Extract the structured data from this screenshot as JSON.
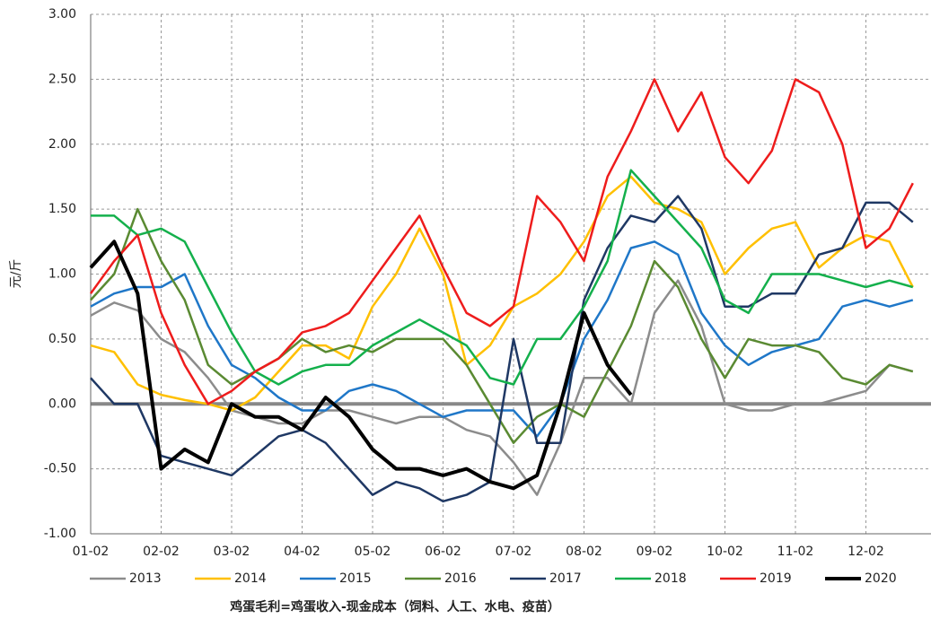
{
  "chart_data": {
    "type": "line",
    "y_label": "元/斤",
    "footnote": "鸡蛋毛利=鸡蛋收入-现金成本（饲料、人工、水电、疫苗）",
    "categories": [
      "01-02",
      null,
      null,
      "02-02",
      null,
      null,
      "03-02",
      null,
      null,
      "04-02",
      null,
      null,
      "05-02",
      null,
      null,
      "06-02",
      null,
      null,
      "07-02",
      null,
      null,
      "08-02",
      null,
      null,
      "09-02",
      null,
      null,
      "10-02",
      null,
      null,
      "11-02",
      null,
      null,
      "12-02",
      null,
      null
    ],
    "ylim": [
      -1,
      3
    ],
    "yticks": [
      {
        "value": -1,
        "label": "-1.00"
      },
      {
        "value": -0.5,
        "label": "-0.50"
      },
      {
        "value": 0,
        "label": "0.00"
      },
      {
        "value": 0.5,
        "label": "0.50"
      },
      {
        "value": 1,
        "label": "1.00"
      },
      {
        "value": 1.5,
        "label": "1.50"
      },
      {
        "value": 2,
        "label": "2.00"
      },
      {
        "value": 2.5,
        "label": "2.50"
      },
      {
        "value": 3,
        "label": "3.00"
      }
    ],
    "grid": true,
    "series": [
      {
        "name": "2013",
        "color": "#8c8c8c",
        "width": 2.5,
        "values": [
          0.68,
          0.78,
          0.72,
          0.5,
          0.4,
          0.2,
          -0.05,
          -0.1,
          -0.15,
          -0.15,
          -0.05,
          -0.05,
          -0.1,
          -0.15,
          -0.1,
          -0.1,
          -0.2,
          -0.25,
          -0.45,
          -0.7,
          -0.3,
          0.2,
          0.2,
          0,
          0.7,
          0.95,
          0.6,
          0,
          -0.05,
          -0.05,
          0,
          0,
          0.05,
          0.1,
          0.3,
          0.25
        ]
      },
      {
        "name": "2014",
        "color": "#ffc000",
        "width": 2.5,
        "values": [
          0.45,
          0.4,
          0.15,
          0.07,
          0.03,
          0,
          -0.05,
          0.05,
          0.25,
          0.45,
          0.45,
          0.35,
          0.75,
          1,
          1.35,
          1,
          0.3,
          0.45,
          0.75,
          0.85,
          1,
          1.25,
          1.6,
          1.75,
          1.55,
          1.5,
          1.4,
          1,
          1.2,
          1.35,
          1.4,
          1.05,
          1.2,
          1.3,
          1.25,
          0.9
        ]
      },
      {
        "name": "2015",
        "color": "#1f77c8",
        "width": 2.5,
        "values": [
          0.75,
          0.85,
          0.9,
          0.9,
          1,
          0.6,
          0.3,
          0.2,
          0.05,
          -0.05,
          -0.05,
          0.1,
          0.15,
          0.1,
          0,
          -0.1,
          -0.05,
          -0.05,
          -0.05,
          -0.25,
          0,
          0.5,
          0.8,
          1.2,
          1.25,
          1.15,
          0.7,
          0.45,
          0.3,
          0.4,
          0.45,
          0.5,
          0.75,
          0.8,
          0.75,
          0.8
        ]
      },
      {
        "name": "2016",
        "color": "#5a8a32",
        "width": 2.5,
        "values": [
          0.8,
          1,
          1.5,
          1.1,
          0.8,
          0.3,
          0.15,
          0.25,
          0.35,
          0.5,
          0.4,
          0.45,
          0.4,
          0.5,
          0.5,
          0.5,
          0.3,
          0,
          -0.3,
          -0.1,
          0,
          -0.1,
          0.25,
          0.6,
          1.1,
          0.9,
          0.5,
          0.2,
          0.5,
          0.45,
          0.45,
          0.4,
          0.2,
          0.15,
          0.3,
          0.25
        ]
      },
      {
        "name": "2017",
        "color": "#1f3864",
        "width": 2.5,
        "values": [
          0.2,
          0,
          0,
          -0.4,
          -0.45,
          -0.5,
          -0.55,
          -0.4,
          -0.25,
          -0.2,
          -0.3,
          -0.5,
          -0.7,
          -0.6,
          -0.65,
          -0.75,
          -0.7,
          -0.6,
          0.5,
          -0.3,
          -0.3,
          0.8,
          1.2,
          1.45,
          1.4,
          1.6,
          1.35,
          0.75,
          0.75,
          0.85,
          0.85,
          1.15,
          1.2,
          1.55,
          1.55,
          1.4
        ]
      },
      {
        "name": "2018",
        "color": "#14b04c",
        "width": 2.5,
        "values": [
          1.45,
          1.45,
          1.3,
          1.35,
          1.25,
          0.9,
          0.55,
          0.25,
          0.15,
          0.25,
          0.3,
          0.3,
          0.45,
          0.55,
          0.65,
          0.55,
          0.45,
          0.2,
          0.15,
          0.5,
          0.5,
          0.75,
          1.1,
          1.8,
          1.6,
          1.4,
          1.2,
          0.8,
          0.7,
          1,
          1,
          1,
          0.95,
          0.9,
          0.95,
          0.9
        ]
      },
      {
        "name": "2019",
        "color": "#ee1c1c",
        "width": 2.5,
        "values": [
          0.85,
          1.1,
          1.3,
          0.7,
          0.3,
          0,
          0.1,
          0.25,
          0.35,
          0.55,
          0.6,
          0.7,
          0.95,
          1.2,
          1.45,
          1.05,
          0.7,
          0.6,
          0.75,
          1.6,
          1.4,
          1.1,
          1.75,
          2.1,
          2.5,
          2.1,
          2.4,
          1.9,
          1.7,
          1.95,
          2.5,
          2.4,
          2,
          1.2,
          1.35,
          1.7
        ]
      },
      {
        "name": "2020",
        "color": "#000000",
        "width": 4,
        "values": [
          1.05,
          1.25,
          0.85,
          -0.5,
          -0.35,
          -0.45,
          0,
          -0.1,
          -0.1,
          -0.2,
          0.05,
          -0.1,
          -0.35,
          -0.5,
          -0.5,
          -0.55,
          -0.5,
          -0.6,
          -0.65,
          -0.55,
          0,
          0.7,
          0.3,
          0.07,
          null,
          null,
          null,
          null,
          null,
          null,
          null,
          null,
          null,
          null,
          null,
          null
        ]
      }
    ]
  }
}
